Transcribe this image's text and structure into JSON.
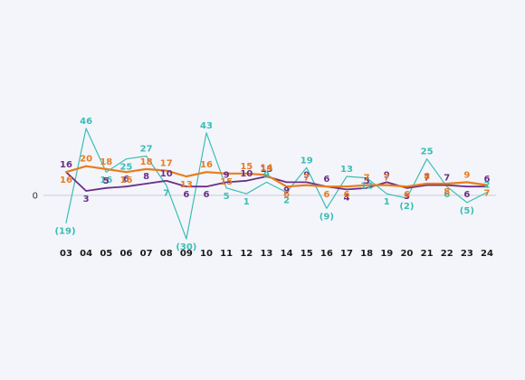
{
  "chart_data": {
    "type": "line",
    "title": "",
    "xlabel": "",
    "ylabel": "",
    "categories": [
      "03",
      "04",
      "05",
      "06",
      "07",
      "08",
      "09",
      "10",
      "11",
      "12",
      "13",
      "14",
      "15",
      "16",
      "17",
      "18",
      "19",
      "20",
      "21",
      "22",
      "23",
      "24"
    ],
    "ylim": [
      -30,
      46
    ],
    "zero_label": "0",
    "grid": false,
    "legend": "none",
    "series": [
      {
        "color": "#3bbdb4",
        "values": [
          -19,
          46,
          16,
          25,
          27,
          7,
          -30,
          43,
          5,
          1,
          9,
          2,
          19,
          -9,
          13,
          12,
          1,
          -2,
          25,
          6,
          -5,
          2
        ],
        "labels": [
          "(19)",
          "46",
          "16",
          "25",
          "27",
          "7",
          "(30)",
          "43",
          "5",
          "1",
          "9",
          "2",
          "19",
          "(9)",
          "13",
          "12",
          "1",
          "(2)",
          "25",
          "6",
          "(5)",
          "2"
        ]
      },
      {
        "color": "#6b2f86",
        "values": [
          16,
          3,
          5,
          6,
          8,
          10,
          6,
          6,
          9,
          10,
          13,
          9,
          9,
          6,
          4,
          5,
          9,
          5,
          7,
          7,
          6,
          6
        ],
        "labels": [
          "16",
          "3",
          "5",
          "6",
          "8",
          "10",
          "6",
          "6",
          "9",
          "10",
          "13",
          "9",
          "9",
          "6",
          "4",
          "5",
          "9",
          "5",
          "7",
          "7",
          "6",
          "6"
        ]
      },
      {
        "color": "#e87d1e",
        "values": [
          16,
          20,
          18,
          16,
          18,
          17,
          13,
          16,
          15,
          15,
          14,
          6,
          7,
          6,
          6,
          7,
          7,
          6,
          8,
          8,
          9,
          7
        ],
        "labels": [
          "16",
          "20",
          "18",
          "16",
          "18",
          "17",
          "13",
          "16",
          "15",
          "15",
          "14",
          "6",
          "7",
          "6",
          "6",
          "7",
          "7",
          "6",
          "8",
          "8",
          "9",
          "7"
        ]
      }
    ]
  }
}
